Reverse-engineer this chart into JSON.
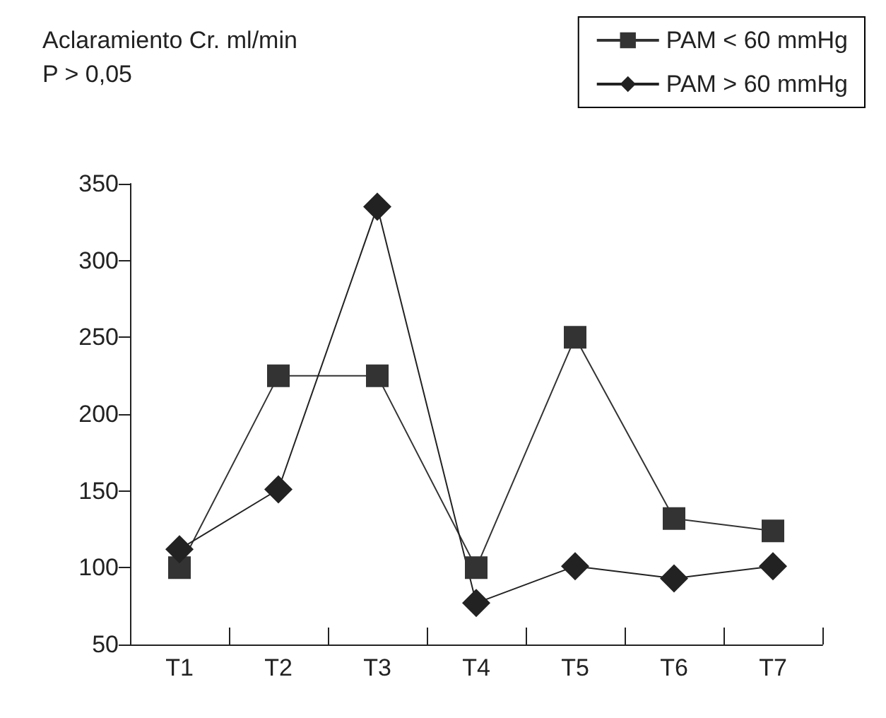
{
  "chart_data": {
    "type": "line",
    "ylabel": "Aclaramiento Cr. ml/min",
    "annotations": [
      "P > 0,05"
    ],
    "categories": [
      "T1",
      "T2",
      "T3",
      "T4",
      "T5",
      "T6",
      "T7"
    ],
    "series": [
      {
        "name": "PAM < 60 mmHg",
        "color": "#333333",
        "marker": "square",
        "values": [
          100,
          225,
          225,
          100,
          250,
          132,
          124
        ]
      },
      {
        "name": "PAM > 60 mmHg",
        "color": "#222222",
        "marker": "diamond",
        "values": [
          112,
          151,
          335,
          77,
          101,
          93,
          101
        ]
      }
    ],
    "ylim": [
      50,
      350
    ],
    "yticks": [
      50,
      100,
      150,
      200,
      250,
      300,
      350
    ],
    "grid": false,
    "legend": "top right"
  }
}
